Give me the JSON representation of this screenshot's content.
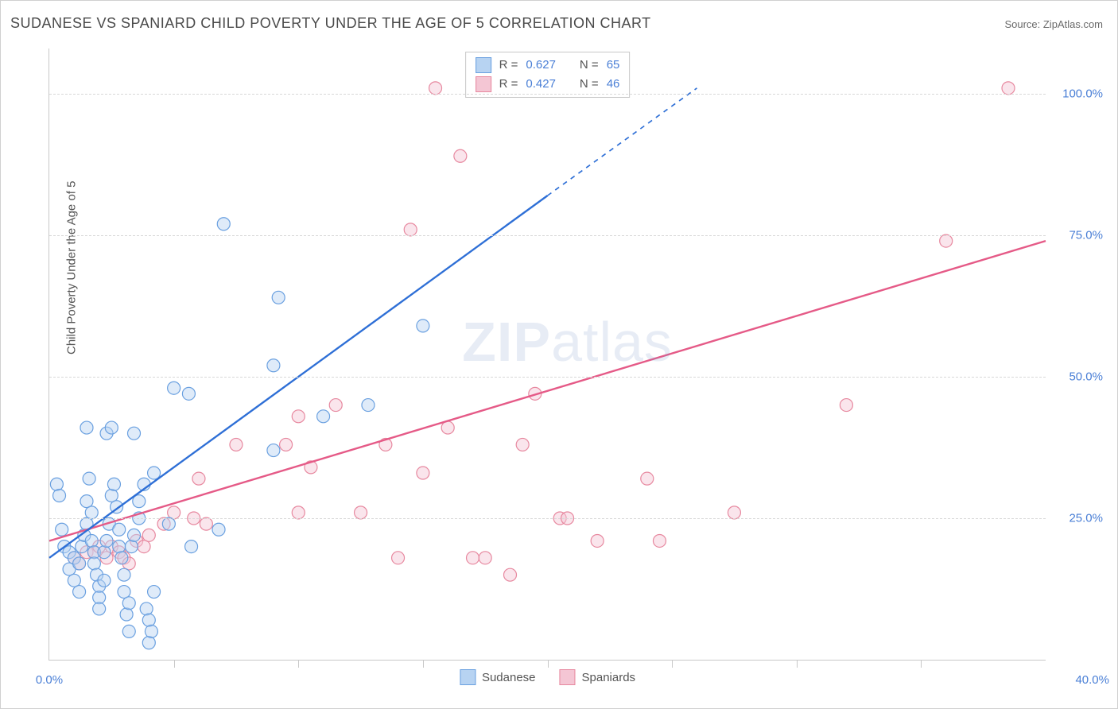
{
  "title": "SUDANESE VS SPANIARD CHILD POVERTY UNDER THE AGE OF 5 CORRELATION CHART",
  "source": "Source: ZipAtlas.com",
  "ylabel": "Child Poverty Under the Age of 5",
  "watermark_bold": "ZIP",
  "watermark_rest": "atlas",
  "chart": {
    "type": "scatter-with-regression",
    "xlim": [
      0,
      40
    ],
    "ylim": [
      0,
      108
    ],
    "x_ticks_major": [
      0,
      40
    ],
    "x_ticks_minor": [
      5,
      10,
      15,
      20,
      25,
      30,
      35
    ],
    "y_ticks_major": [
      25,
      50,
      75,
      100
    ],
    "x_tick_labels": {
      "0": "0.0%",
      "40": "40.0%"
    },
    "y_tick_labels": {
      "25": "25.0%",
      "50": "50.0%",
      "75": "75.0%",
      "100": "100.0%"
    },
    "background_color": "#ffffff",
    "grid_color": "#d8d8d8",
    "axis_color": "#c8c8c8",
    "label_color": "#4a7fd6",
    "marker_radius": 8,
    "marker_fill_opacity": 0.45,
    "marker_stroke_width": 1.2,
    "line_width": 2.4,
    "dash_pattern": "6,6"
  },
  "series": {
    "sudanese": {
      "label": "Sudanese",
      "color_fill": "#b7d3f2",
      "color_stroke": "#6aa0e0",
      "line_color": "#2e6fd6",
      "R": "0.627",
      "N": "65",
      "regression": {
        "x1": 0,
        "y1": 18,
        "x2": 20,
        "y2": 82,
        "dash_from_x": 20,
        "x3": 26,
        "y3": 101
      },
      "points": [
        [
          0.3,
          31
        ],
        [
          0.4,
          29
        ],
        [
          0.5,
          23
        ],
        [
          0.6,
          20
        ],
        [
          0.8,
          19
        ],
        [
          0.8,
          16
        ],
        [
          1.0,
          18
        ],
        [
          1.0,
          14
        ],
        [
          1.2,
          12
        ],
        [
          1.2,
          17
        ],
        [
          1.3,
          20
        ],
        [
          1.4,
          22
        ],
        [
          1.5,
          24
        ],
        [
          1.5,
          28
        ],
        [
          1.6,
          32
        ],
        [
          1.7,
          26
        ],
        [
          1.7,
          21
        ],
        [
          1.8,
          19
        ],
        [
          1.8,
          17
        ],
        [
          1.9,
          15
        ],
        [
          2.0,
          13
        ],
        [
          2.0,
          11
        ],
        [
          2.0,
          9
        ],
        [
          2.2,
          14
        ],
        [
          2.2,
          19
        ],
        [
          2.3,
          21
        ],
        [
          2.4,
          24
        ],
        [
          2.5,
          29
        ],
        [
          2.6,
          31
        ],
        [
          2.7,
          27
        ],
        [
          2.8,
          23
        ],
        [
          2.8,
          20
        ],
        [
          2.9,
          18
        ],
        [
          3.0,
          15
        ],
        [
          3.0,
          12
        ],
        [
          3.1,
          8
        ],
        [
          3.2,
          5
        ],
        [
          3.2,
          10
        ],
        [
          3.3,
          20
        ],
        [
          3.4,
          22
        ],
        [
          3.6,
          25
        ],
        [
          3.6,
          28
        ],
        [
          3.8,
          31
        ],
        [
          3.9,
          9
        ],
        [
          4.0,
          7
        ],
        [
          4.0,
          3
        ],
        [
          4.1,
          5
        ],
        [
          4.2,
          12
        ],
        [
          2.3,
          40
        ],
        [
          2.5,
          41
        ],
        [
          3.4,
          40
        ],
        [
          4.2,
          33
        ],
        [
          4.8,
          24
        ],
        [
          5.0,
          48
        ],
        [
          5.6,
          47
        ],
        [
          5.7,
          20
        ],
        [
          6.8,
          23
        ],
        [
          7.0,
          77
        ],
        [
          9.2,
          64
        ],
        [
          9.0,
          37
        ],
        [
          9.0,
          52
        ],
        [
          11.0,
          43
        ],
        [
          12.8,
          45
        ],
        [
          15.0,
          59
        ],
        [
          1.5,
          41
        ]
      ]
    },
    "spaniards": {
      "label": "Spaniards",
      "color_fill": "#f4c6d4",
      "color_stroke": "#e7889f",
      "line_color": "#e55a87",
      "R": "0.427",
      "N": "46",
      "regression": {
        "x1": 0,
        "y1": 21,
        "x2": 40,
        "y2": 74
      },
      "points": [
        [
          1.0,
          18
        ],
        [
          1.2,
          17
        ],
        [
          1.5,
          19
        ],
        [
          1.8,
          19
        ],
        [
          2.0,
          20
        ],
        [
          2.3,
          18
        ],
        [
          2.5,
          20
        ],
        [
          2.8,
          19
        ],
        [
          3.0,
          18
        ],
        [
          3.2,
          17
        ],
        [
          3.5,
          21
        ],
        [
          3.8,
          20
        ],
        [
          4.0,
          22
        ],
        [
          4.6,
          24
        ],
        [
          5.0,
          26
        ],
        [
          5.8,
          25
        ],
        [
          6.0,
          32
        ],
        [
          6.3,
          24
        ],
        [
          7.5,
          38
        ],
        [
          9.5,
          38
        ],
        [
          10.0,
          26
        ],
        [
          10,
          43
        ],
        [
          10.5,
          34
        ],
        [
          11.5,
          45
        ],
        [
          12.5,
          26
        ],
        [
          13.5,
          38
        ],
        [
          14,
          18
        ],
        [
          14.5,
          76
        ],
        [
          15,
          33
        ],
        [
          15.5,
          101
        ],
        [
          16,
          41
        ],
        [
          16.5,
          89
        ],
        [
          17,
          18
        ],
        [
          17.5,
          18
        ],
        [
          18.5,
          15
        ],
        [
          19,
          38
        ],
        [
          19.5,
          47
        ],
        [
          20.5,
          25
        ],
        [
          20.8,
          25
        ],
        [
          22,
          21
        ],
        [
          24,
          32
        ],
        [
          24.5,
          21
        ],
        [
          27.5,
          26
        ],
        [
          32,
          45
        ],
        [
          36,
          74
        ],
        [
          38.5,
          101
        ]
      ]
    }
  },
  "stats_labels": {
    "R": "R =",
    "N": "N ="
  },
  "legend_bottom": [
    "sudanese",
    "spaniards"
  ]
}
